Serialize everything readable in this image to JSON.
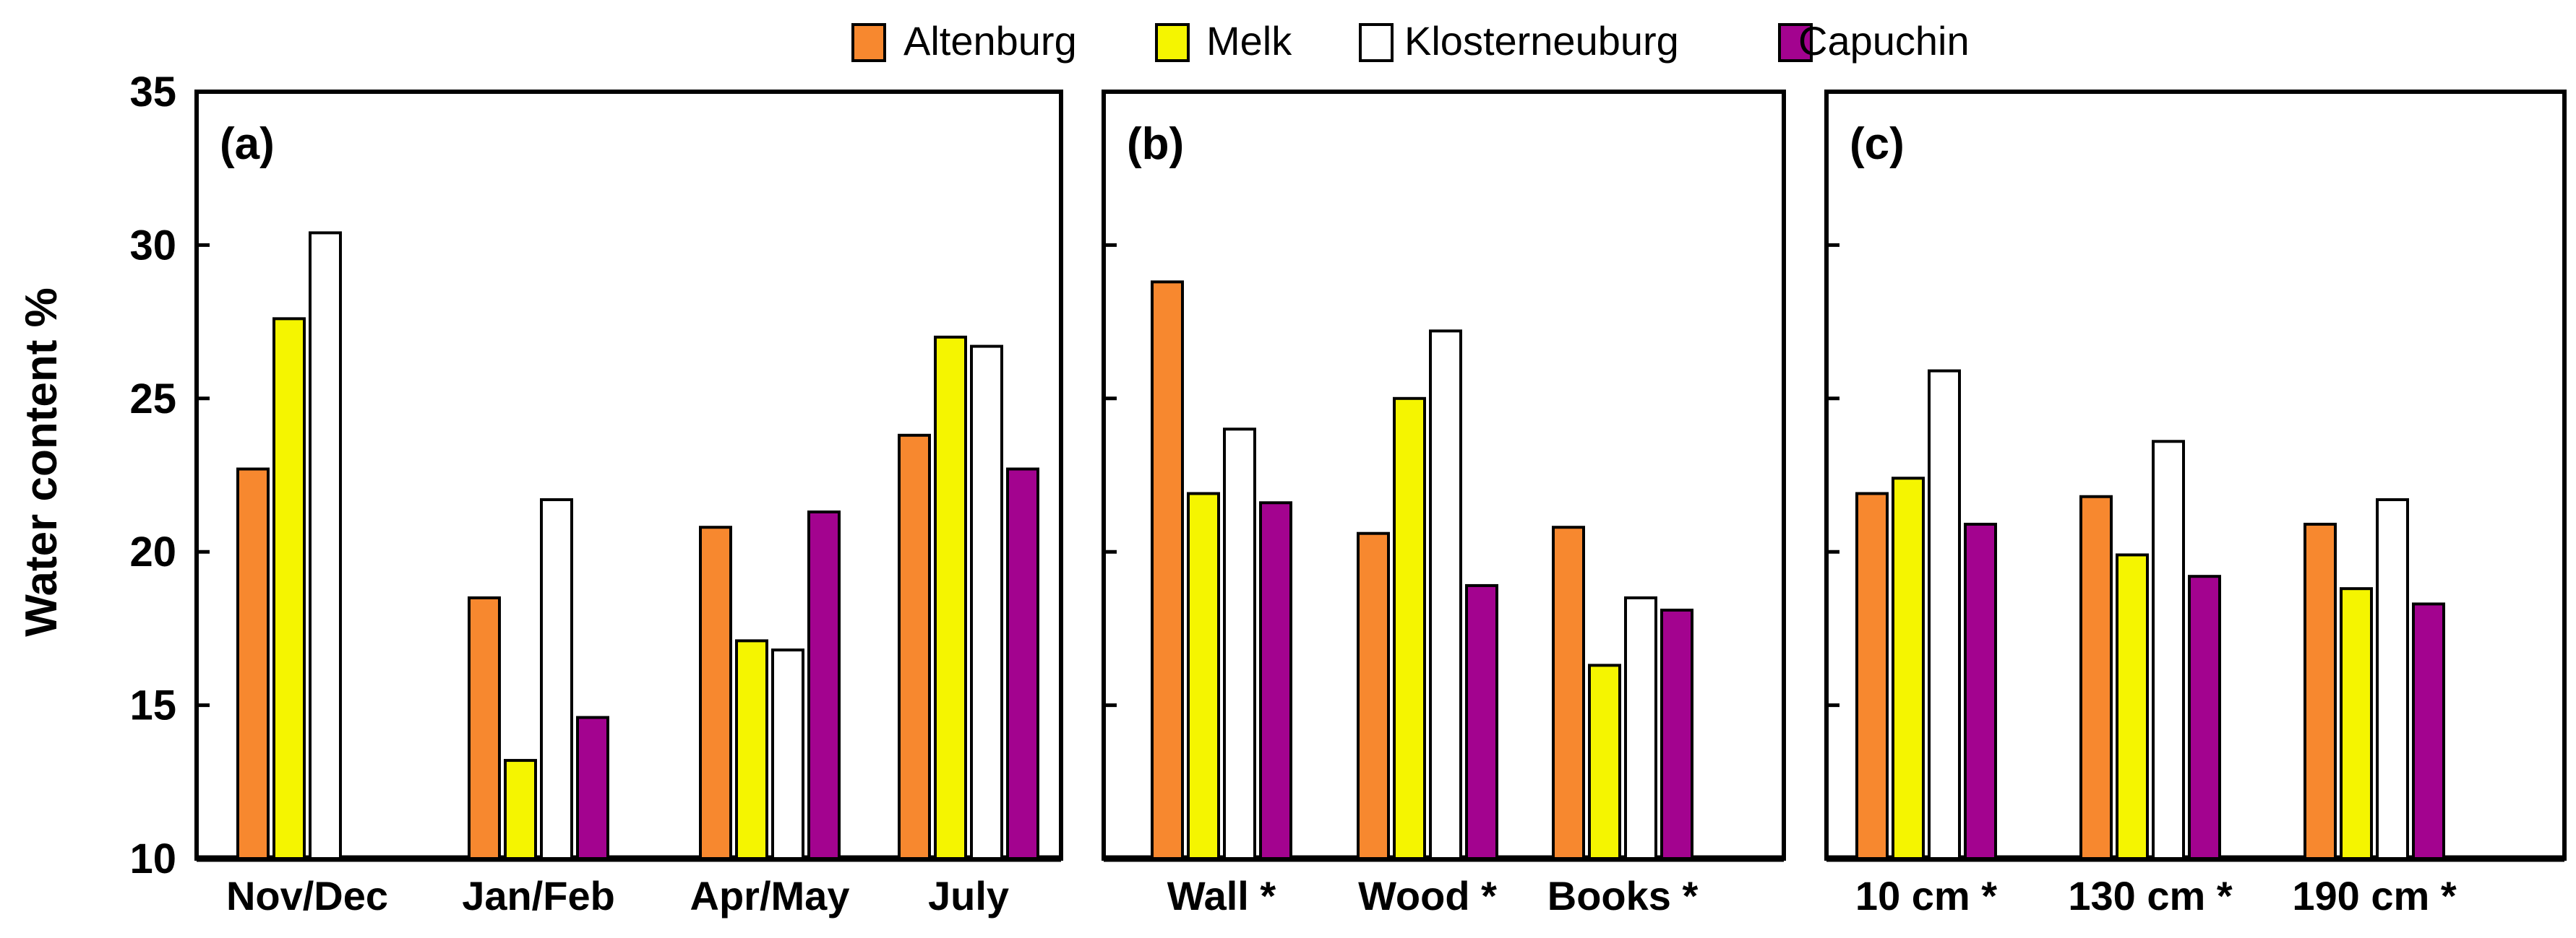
{
  "colors": {
    "Altenburg": "#f7882f",
    "Melk": "#f5f500",
    "Klosterneuburg": "#ffffff",
    "Capuchin": "#a3038f"
  },
  "legend": {
    "items": [
      "Altenburg",
      "Melk",
      "Klosterneuburg",
      "Capuchin"
    ]
  },
  "chart_data": {
    "type": "bar",
    "ylabel": "Water content %",
    "ylim": [
      10,
      35
    ],
    "yticks": [
      10,
      15,
      20,
      25,
      30,
      35
    ],
    "grid": false,
    "legend_position": "top-center",
    "series_names": [
      "Altenburg",
      "Melk",
      "Klosterneuburg",
      "Capuchin"
    ],
    "panels": [
      {
        "label": "(a)",
        "categories": [
          "Nov/Dec",
          "Jan/Feb",
          "Apr/May",
          "July"
        ],
        "series": [
          {
            "name": "Altenburg",
            "values": [
              22.7,
              18.5,
              20.8,
              23.8
            ]
          },
          {
            "name": "Melk",
            "values": [
              27.6,
              13.2,
              17.1,
              27.0
            ]
          },
          {
            "name": "Klosterneuburg",
            "values": [
              30.4,
              21.7,
              16.8,
              26.7
            ]
          },
          {
            "name": "Capuchin",
            "values": [
              null,
              14.6,
              21.3,
              22.7
            ]
          }
        ]
      },
      {
        "label": "(b)",
        "categories": [
          "Wall *",
          "Wood *",
          "Books *"
        ],
        "series": [
          {
            "name": "Altenburg",
            "values": [
              28.8,
              20.6,
              20.8
            ]
          },
          {
            "name": "Melk",
            "values": [
              21.9,
              25.0,
              16.3
            ]
          },
          {
            "name": "Klosterneuburg",
            "values": [
              24.0,
              27.2,
              18.5
            ]
          },
          {
            "name": "Capuchin",
            "values": [
              21.6,
              18.9,
              18.1
            ]
          }
        ]
      },
      {
        "label": "(c)",
        "categories": [
          "10 cm *",
          "130 cm *",
          "190 cm *"
        ],
        "series": [
          {
            "name": "Altenburg",
            "values": [
              21.9,
              21.8,
              20.9
            ]
          },
          {
            "name": "Melk",
            "values": [
              22.4,
              19.9,
              18.8
            ]
          },
          {
            "name": "Klosterneuburg",
            "values": [
              25.9,
              23.6,
              21.7
            ]
          },
          {
            "name": "Capuchin",
            "values": [
              20.9,
              19.2,
              18.3
            ]
          }
        ]
      }
    ]
  }
}
